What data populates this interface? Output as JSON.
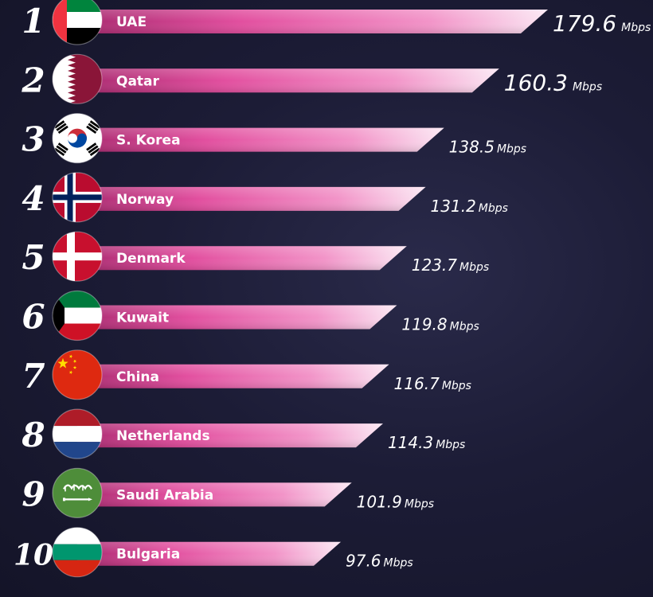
{
  "chart_data": {
    "type": "bar",
    "orientation": "horizontal",
    "unit": "Mbps",
    "ranks": [
      "1",
      "2",
      "3",
      "4",
      "5",
      "6",
      "7",
      "8",
      "9",
      "10"
    ],
    "categories": [
      "UAE",
      "Qatar",
      "S. Korea",
      "Norway",
      "Denmark",
      "Kuwait",
      "China",
      "Netherlands",
      "Saudi Arabia",
      "Bulgaria"
    ],
    "values": [
      179.6,
      160.3,
      138.5,
      131.2,
      123.7,
      119.8,
      116.7,
      114.3,
      101.9,
      97.6
    ],
    "value_labels": [
      "179.6",
      "160.3",
      "138.5",
      "131.2",
      "123.7",
      "119.8",
      "116.7",
      "114.3",
      "101.9",
      "97.6"
    ],
    "flags": [
      "uae-flag",
      "qatar-flag",
      "south-korea-flag",
      "norway-flag",
      "denmark-flag",
      "kuwait-flag",
      "china-flag",
      "netherlands-flag",
      "saudi-arabia-flag",
      "bulgaria-flag"
    ],
    "colors": {
      "bar_start": "#c2307f",
      "bar_mid": "#ea5fac",
      "bar_end": "#f9e2f2"
    }
  }
}
